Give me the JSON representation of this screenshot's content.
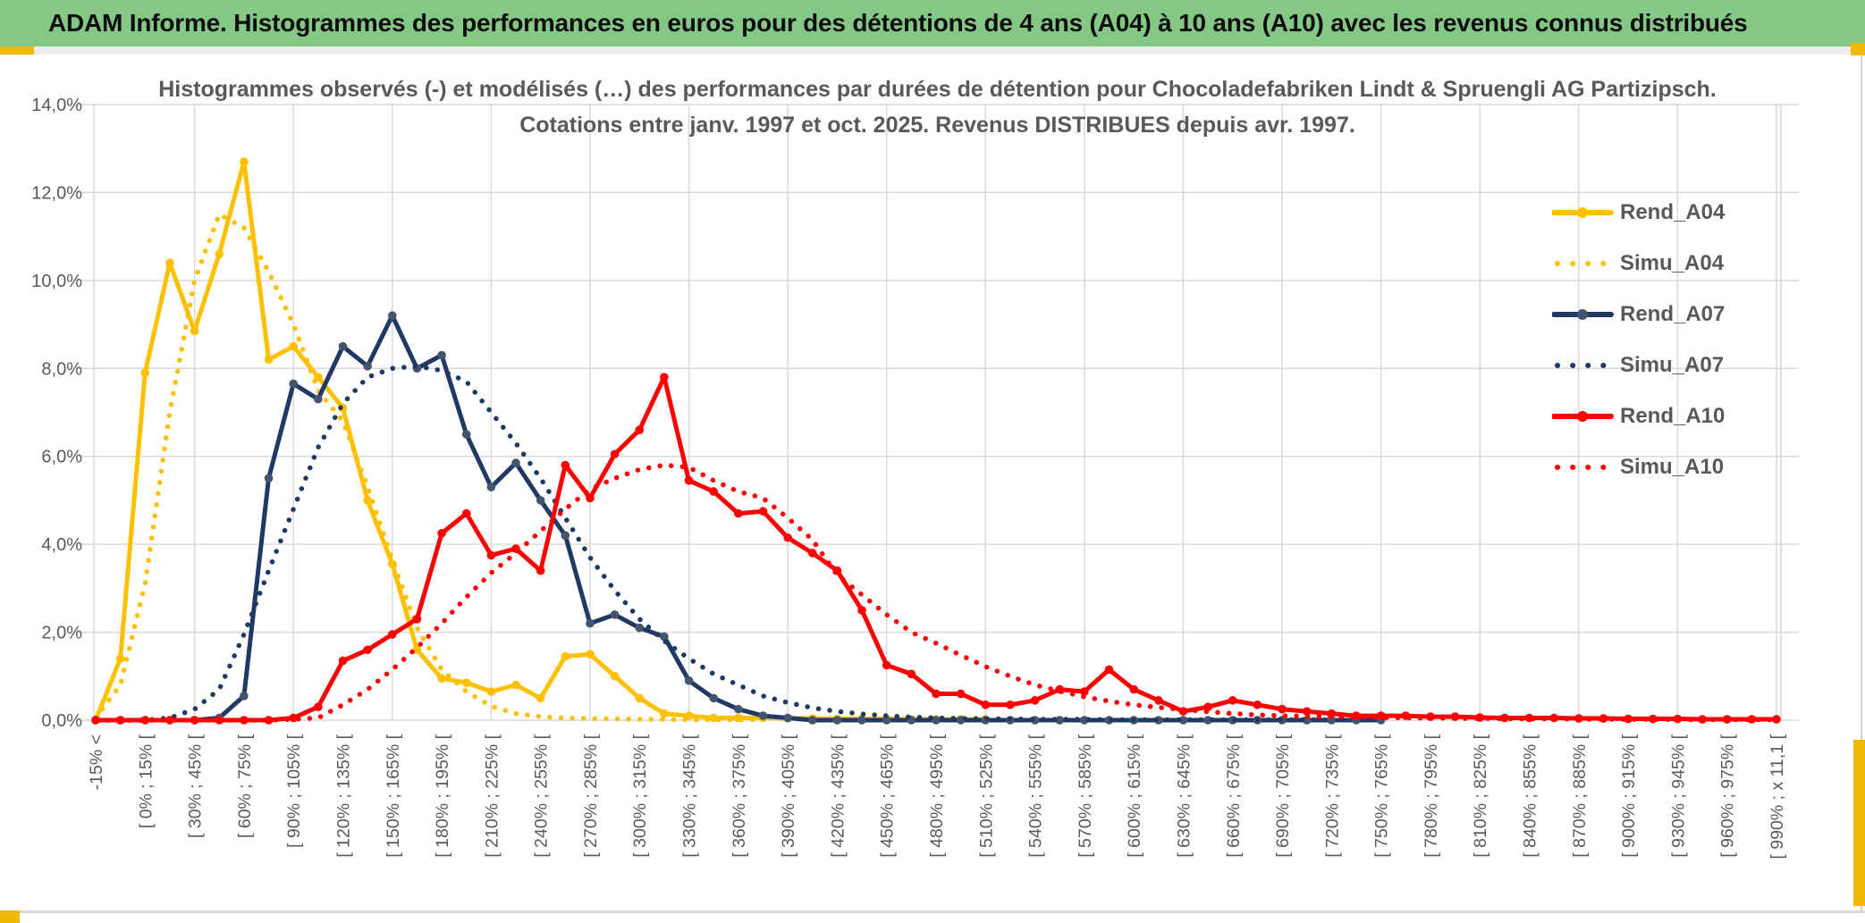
{
  "header": {
    "title": "ADAM Informe. Histogrammes des performances en euros pour des détentions de 4 ans (A04) à 10 ans (A10) avec les revenus connus distribués"
  },
  "colors": {
    "header_green": "#85C785",
    "accent_yellow": "#F0B800",
    "grid_gray": "#D9D9D9",
    "text_gray": "#595959",
    "gold": "#FFC000",
    "navy": "#1F3864",
    "navy_marker": "#44546A",
    "red": "#FF0000"
  },
  "chart_data": {
    "type": "line",
    "title_line1": "Histogrammes observés (-) et modélisés (…) des performances par durées de détention pour Chocoladefabriken Lindt & Spruengli AG Partizipsch.",
    "title_line2": "Cotations entre janv. 1997 et oct. 2025. Revenus DISTRIBUES depuis avr. 1997.",
    "grid": true,
    "legend_position": "right",
    "n_categories": 69,
    "x_axis": {
      "note": "bins of 15% width; every 2nd bin labelled; labels rotated 90° CCW",
      "labels": [
        "-15% <",
        "[ 0% ; 15% [",
        "[ 30% ; 45% [",
        "[ 60% ; 75% [",
        "[ 90% ; 105% [",
        "[ 120% ; 135% [",
        "[ 150% ; 165% [",
        "[ 180% ; 195% [",
        "[ 210% ; 225% [",
        "[ 240% ; 255% [",
        "[ 270% ; 285% [",
        "[ 300% ; 315% [",
        "[ 330% ; 345% [",
        "[ 360% ; 375% [",
        "[ 390% ; 405% [",
        "[ 420% ; 435% [",
        "[ 450% ; 465% [",
        "[ 480% ; 495% [",
        "[ 510% ; 525% [",
        "[ 540% ; 555% [",
        "[ 570% ; 585% [",
        "[ 600% ; 615% [",
        "[ 630% ; 645% [",
        "[ 660% ; 675% [",
        "[ 690% ; 705% [",
        "[ 720% ; 735% [",
        "[ 750% ; 765% [",
        "[ 780% ; 795% [",
        "[ 810% ; 825% [",
        "[ 840% ; 855% [",
        "[ 870% ; 885% [",
        "[ 900% ; 915% [",
        "[ 930% ; 945% [",
        "[ 960% ; 975% [",
        "[ 990% ; x 11,1 ["
      ],
      "label_category_step": 2
    },
    "y_axis": {
      "min": 0,
      "max": 14,
      "step": 2,
      "labels": [
        "0,0%",
        "2,0%",
        "4,0%",
        "6,0%",
        "8,0%",
        "10,0%",
        "12,0%",
        "14,0%"
      ]
    },
    "series": [
      {
        "name": "Rend_A04",
        "style": "solid",
        "color": "#FFC000",
        "marker_color": "#FFC000",
        "values": [
          0,
          1.4,
          7.9,
          10.4,
          8.85,
          10.6,
          12.7,
          8.2,
          8.5,
          7.8,
          7.1,
          5.0,
          3.55,
          1.6,
          0.95,
          0.85,
          0.65,
          0.8,
          0.5,
          1.45,
          1.5,
          1.0,
          0.5,
          0.15,
          0.1,
          0.05,
          0.05,
          0.05,
          0.04,
          0.04,
          0.03,
          0.03,
          0.03,
          0.02,
          0.02,
          0.02,
          0.02,
          null,
          null,
          null,
          null,
          null,
          null,
          null,
          null,
          null,
          null,
          null,
          null,
          null,
          null,
          null,
          null,
          null,
          null,
          null,
          null,
          null,
          null,
          null,
          null,
          null,
          null,
          null,
          null,
          null,
          null,
          null,
          null
        ]
      },
      {
        "name": "Simu_A04",
        "style": "dotted",
        "color": "#FFC000",
        "values": [
          0.05,
          0.8,
          3.1,
          7.0,
          10.0,
          11.5,
          11.2,
          10.2,
          9.0,
          7.5,
          6.8,
          5.3,
          3.65,
          2.1,
          1.15,
          0.65,
          0.32,
          0.15,
          0.08,
          0.05,
          0.04,
          0.03,
          0.02,
          0.02,
          0.01,
          0.01,
          0.01,
          0.01,
          null,
          null,
          null,
          null,
          null,
          null,
          null,
          null,
          null,
          null,
          null,
          null,
          null,
          null,
          null,
          null,
          null,
          null,
          null,
          null,
          null,
          null,
          null,
          null,
          null,
          null,
          null,
          null,
          null,
          null,
          null,
          null,
          null,
          null,
          null,
          null,
          null,
          null,
          null,
          null,
          null
        ]
      },
      {
        "name": "Rend_A07",
        "style": "solid",
        "color": "#1F3864",
        "marker_color": "#44546A",
        "values": [
          0,
          0,
          0,
          0,
          0,
          0.05,
          0.55,
          5.5,
          7.65,
          7.3,
          8.5,
          8.05,
          9.2,
          8.0,
          8.3,
          6.5,
          5.3,
          5.85,
          5.0,
          4.2,
          2.2,
          2.4,
          2.1,
          1.9,
          0.9,
          0.5,
          0.25,
          0.1,
          0.05,
          0,
          0,
          0,
          0,
          0,
          0,
          0,
          0,
          0,
          0,
          0,
          0,
          0,
          0,
          0,
          0,
          0,
          0,
          0,
          0,
          0,
          0,
          0,
          0,
          null,
          null,
          null,
          null,
          null,
          null,
          null,
          null,
          null,
          null,
          null,
          null,
          null,
          null,
          null,
          null
        ]
      },
      {
        "name": "Simu_A07",
        "style": "dotted",
        "color": "#1F3864",
        "values": [
          0,
          0,
          0,
          0.05,
          0.25,
          0.7,
          1.95,
          3.4,
          4.8,
          6.2,
          7.2,
          7.8,
          8.0,
          8.05,
          7.95,
          7.7,
          7.0,
          6.3,
          5.5,
          4.6,
          3.7,
          2.95,
          2.3,
          1.8,
          1.4,
          1.05,
          0.8,
          0.55,
          0.4,
          0.28,
          0.2,
          0.14,
          0.1,
          0.07,
          0.05,
          0.04,
          0.03,
          0.03,
          0.02,
          0.02,
          0.02,
          0.01,
          0.01,
          0.01,
          0.01,
          0.01,
          0.01,
          0.01,
          0.01,
          0.01,
          0.01,
          null,
          null,
          null,
          null,
          null,
          null,
          null,
          null,
          null,
          null,
          null,
          null,
          null,
          null,
          null,
          null,
          null,
          null
        ]
      },
      {
        "name": "Rend_A10",
        "style": "solid",
        "color": "#FF0000",
        "marker_color": "#FF0000",
        "values": [
          0,
          0,
          0,
          0,
          0,
          0,
          0,
          0,
          0.05,
          0.3,
          1.35,
          1.6,
          1.95,
          2.3,
          4.25,
          4.7,
          3.75,
          3.9,
          3.4,
          5.8,
          5.05,
          6.05,
          6.6,
          7.8,
          5.45,
          5.2,
          4.7,
          4.75,
          4.15,
          3.8,
          3.4,
          2.5,
          1.25,
          1.05,
          0.6,
          0.6,
          0.35,
          0.35,
          0.45,
          0.7,
          0.65,
          1.15,
          0.7,
          0.45,
          0.2,
          0.3,
          0.45,
          0.35,
          0.25,
          0.2,
          0.15,
          0.1,
          0.1,
          0.1,
          0.08,
          0.08,
          0.06,
          0.05,
          0.05,
          0.05,
          0.04,
          0.04,
          0.03,
          0.03,
          0.03,
          0.02,
          0.02,
          0.02,
          0.02
        ]
      },
      {
        "name": "Simu_A10",
        "style": "dotted",
        "color": "#FF0000",
        "values": [
          0,
          0,
          0,
          0,
          0,
          0,
          0,
          0,
          0.02,
          0.05,
          0.35,
          0.7,
          1.15,
          1.65,
          2.2,
          2.8,
          3.35,
          3.8,
          4.3,
          4.8,
          5.25,
          5.5,
          5.7,
          5.8,
          5.75,
          5.45,
          5.2,
          5.05,
          4.6,
          4.1,
          3.3,
          2.85,
          2.4,
          2.0,
          1.75,
          1.48,
          1.22,
          1.0,
          0.8,
          0.66,
          0.53,
          0.43,
          0.35,
          0.29,
          0.24,
          0.19,
          0.15,
          0.12,
          0.1,
          0.09,
          0.08,
          0.07,
          0.06,
          0.05,
          0.05,
          0.04,
          0.04,
          0.03,
          0.03,
          0.03,
          0.02,
          0.02,
          0.02,
          0.02,
          0.01,
          0.01,
          0.01,
          0.01,
          0.01
        ]
      }
    ]
  }
}
